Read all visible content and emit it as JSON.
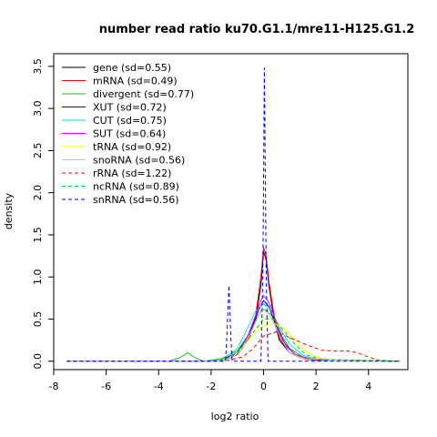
{
  "chart_data": {
    "type": "line",
    "title": "number read ratio ku70.G1.1/mre11-H125.G1.2",
    "xlabel": "log2 ratio",
    "ylabel": "density",
    "xlim": [
      -8,
      5.5
    ],
    "ylim": [
      -0.1,
      3.65
    ],
    "x_ticks": [
      -8,
      -6,
      -4,
      -2,
      0,
      2,
      4
    ],
    "x_tick_labels": [
      "-8",
      "-6",
      "-4",
      "-2",
      "0",
      "2",
      "4"
    ],
    "y_ticks": [
      0.0,
      0.5,
      1.0,
      1.5,
      2.0,
      2.5,
      3.0,
      3.5
    ],
    "y_tick_labels": [
      "0.0",
      "0.5",
      "1.0",
      "1.5",
      "2.0",
      "2.5",
      "3.0",
      "3.5"
    ],
    "grid": false,
    "legend_position": "top-left",
    "series": [
      {
        "name": "gene (sd=0.55)",
        "color": "#000000",
        "dash": "solid",
        "points": [
          [
            -7.5,
            0
          ],
          [
            -2.0,
            0
          ],
          [
            -1.5,
            0.02
          ],
          [
            -1.0,
            0.08
          ],
          [
            -0.6,
            0.25
          ],
          [
            -0.3,
            0.5
          ],
          [
            -0.1,
            0.9
          ],
          [
            0,
            1.3
          ],
          [
            0.1,
            1.2
          ],
          [
            0.2,
            0.9
          ],
          [
            0.4,
            0.5
          ],
          [
            0.6,
            0.25
          ],
          [
            1.0,
            0.1
          ],
          [
            1.5,
            0.03
          ],
          [
            2.0,
            0.01
          ],
          [
            5.2,
            0
          ]
        ]
      },
      {
        "name": "mRNA (sd=0.49)",
        "color": "#ff0000",
        "dash": "solid",
        "points": [
          [
            -7.5,
            0
          ],
          [
            -2.0,
            0
          ],
          [
            -1.5,
            0.02
          ],
          [
            -1.0,
            0.08
          ],
          [
            -0.6,
            0.25
          ],
          [
            -0.3,
            0.55
          ],
          [
            -0.1,
            1.0
          ],
          [
            0,
            1.35
          ],
          [
            0.1,
            1.25
          ],
          [
            0.2,
            0.95
          ],
          [
            0.4,
            0.55
          ],
          [
            0.6,
            0.28
          ],
          [
            1.0,
            0.1
          ],
          [
            1.5,
            0.03
          ],
          [
            2.0,
            0.01
          ],
          [
            5.2,
            0
          ]
        ]
      },
      {
        "name": "divergent (sd=0.77)",
        "color": "#00cd00",
        "dash": "solid",
        "points": [
          [
            -7.5,
            0
          ],
          [
            -3.6,
            0
          ],
          [
            -3.2,
            0.04
          ],
          [
            -2.9,
            0.1
          ],
          [
            -2.6,
            0.04
          ],
          [
            -2.3,
            0
          ],
          [
            -1.6,
            0.03
          ],
          [
            -1.0,
            0.12
          ],
          [
            -0.5,
            0.35
          ],
          [
            -0.2,
            0.55
          ],
          [
            0,
            0.62
          ],
          [
            0.3,
            0.55
          ],
          [
            0.6,
            0.35
          ],
          [
            1.0,
            0.15
          ],
          [
            1.5,
            0.05
          ],
          [
            2.2,
            0.01
          ],
          [
            5.2,
            0
          ]
        ]
      },
      {
        "name": "XUT (sd=0.72)",
        "color": "#0000ff",
        "dash": "solid",
        "points": [
          [
            -7.5,
            0
          ],
          [
            -2.0,
            0
          ],
          [
            -1.5,
            0.03
          ],
          [
            -1.0,
            0.1
          ],
          [
            -0.5,
            0.35
          ],
          [
            -0.2,
            0.6
          ],
          [
            0,
            0.72
          ],
          [
            0.2,
            0.65
          ],
          [
            0.5,
            0.4
          ],
          [
            0.8,
            0.2
          ],
          [
            1.2,
            0.08
          ],
          [
            1.8,
            0.02
          ],
          [
            5.2,
            0
          ]
        ]
      },
      {
        "name": "CUT (sd=0.75)",
        "color": "#00e5ee",
        "dash": "solid",
        "points": [
          [
            -7.5,
            0
          ],
          [
            -2.0,
            0
          ],
          [
            -1.5,
            0.03
          ],
          [
            -1.0,
            0.15
          ],
          [
            -0.6,
            0.4
          ],
          [
            -0.3,
            0.6
          ],
          [
            0,
            0.68
          ],
          [
            0.3,
            0.6
          ],
          [
            0.6,
            0.4
          ],
          [
            1.0,
            0.2
          ],
          [
            1.5,
            0.07
          ],
          [
            2.2,
            0.01
          ],
          [
            5.2,
            0
          ]
        ]
      },
      {
        "name": "SUT (sd=0.64)",
        "color": "#ee00ee",
        "dash": "solid",
        "points": [
          [
            -7.5,
            0
          ],
          [
            -2.0,
            0
          ],
          [
            -1.5,
            0.02
          ],
          [
            -1.0,
            0.08
          ],
          [
            -0.6,
            0.3
          ],
          [
            -0.3,
            0.55
          ],
          [
            -0.1,
            0.72
          ],
          [
            0,
            0.78
          ],
          [
            0.2,
            0.7
          ],
          [
            0.5,
            0.45
          ],
          [
            0.8,
            0.22
          ],
          [
            1.2,
            0.08
          ],
          [
            1.8,
            0.02
          ],
          [
            5.2,
            0
          ]
        ]
      },
      {
        "name": "tRNA (sd=0.92)",
        "color": "#ffff00",
        "dash": "solid",
        "points": [
          [
            -7.5,
            0
          ],
          [
            -2.0,
            0
          ],
          [
            -1.4,
            0.03
          ],
          [
            -1.0,
            0.1
          ],
          [
            -0.5,
            0.28
          ],
          [
            0,
            0.42
          ],
          [
            0.4,
            0.45
          ],
          [
            0.8,
            0.38
          ],
          [
            1.2,
            0.25
          ],
          [
            1.6,
            0.12
          ],
          [
            2.0,
            0.05
          ],
          [
            2.6,
            0.01
          ],
          [
            5.2,
            0
          ]
        ]
      },
      {
        "name": "snoRNA (sd=0.56)",
        "color": "#c0c0c0",
        "dash": "solid",
        "points": [
          [
            -7.5,
            0
          ],
          [
            -2.0,
            0
          ],
          [
            -1.2,
            0.04
          ],
          [
            -0.8,
            0.15
          ],
          [
            -0.4,
            0.4
          ],
          [
            -0.1,
            0.6
          ],
          [
            0.1,
            0.62
          ],
          [
            0.4,
            0.45
          ],
          [
            0.7,
            0.25
          ],
          [
            1.0,
            0.1
          ],
          [
            1.5,
            0.03
          ],
          [
            5.2,
            0
          ]
        ]
      },
      {
        "name": "rRNA (sd=1.22)",
        "color": "#ff0000",
        "dash": "dashed",
        "points": [
          [
            -7.5,
            0
          ],
          [
            -1.5,
            0
          ],
          [
            -0.8,
            0.05
          ],
          [
            -0.4,
            0.15
          ],
          [
            0,
            0.3
          ],
          [
            0.5,
            0.35
          ],
          [
            1.0,
            0.28
          ],
          [
            1.6,
            0.2
          ],
          [
            2.2,
            0.13
          ],
          [
            2.8,
            0.12
          ],
          [
            3.2,
            0.12
          ],
          [
            3.6,
            0.1
          ],
          [
            4.0,
            0.05
          ],
          [
            4.4,
            0.01
          ],
          [
            5.2,
            0
          ]
        ]
      },
      {
        "name": "ncRNA (sd=0.89)",
        "color": "#00cd00",
        "dash": "dashed",
        "points": [
          [
            -7.5,
            0
          ],
          [
            -2.0,
            0
          ],
          [
            -1.4,
            0.03
          ],
          [
            -1.0,
            0.1
          ],
          [
            -0.5,
            0.3
          ],
          [
            0,
            0.5
          ],
          [
            0.4,
            0.5
          ],
          [
            0.8,
            0.35
          ],
          [
            1.2,
            0.2
          ],
          [
            1.6,
            0.08
          ],
          [
            2.2,
            0.02
          ],
          [
            5.2,
            0
          ]
        ]
      },
      {
        "name": "snRNA (sd=0.56)",
        "color": "#0000ff",
        "dash": "dashed",
        "points": [
          [
            -7.5,
            0
          ],
          [
            -1.45,
            0
          ],
          [
            -1.4,
            0.3
          ],
          [
            -1.32,
            0.9
          ],
          [
            -1.25,
            0.3
          ],
          [
            -1.2,
            0
          ],
          [
            -0.1,
            0
          ],
          [
            -0.03,
            1.0
          ],
          [
            0.03,
            3.48
          ],
          [
            0.1,
            1.0
          ],
          [
            0.17,
            0
          ],
          [
            5.2,
            0
          ]
        ]
      }
    ]
  }
}
